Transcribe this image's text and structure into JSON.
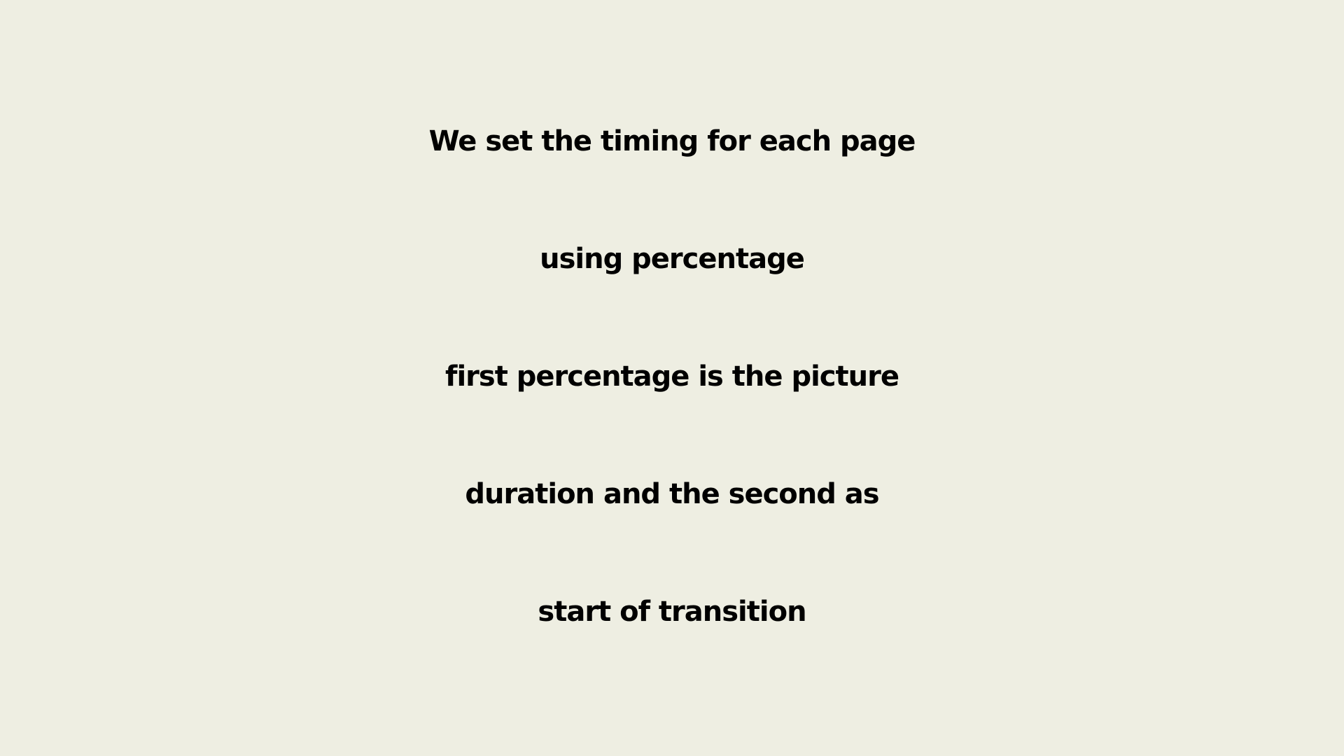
{
  "slide": {
    "lines": [
      "We set the timing for each page",
      "using percentage",
      "first percentage is the picture",
      "duration and the second as",
      "start of transition"
    ]
  },
  "colors": {
    "background": "#eeeee2",
    "text": "#000000"
  }
}
